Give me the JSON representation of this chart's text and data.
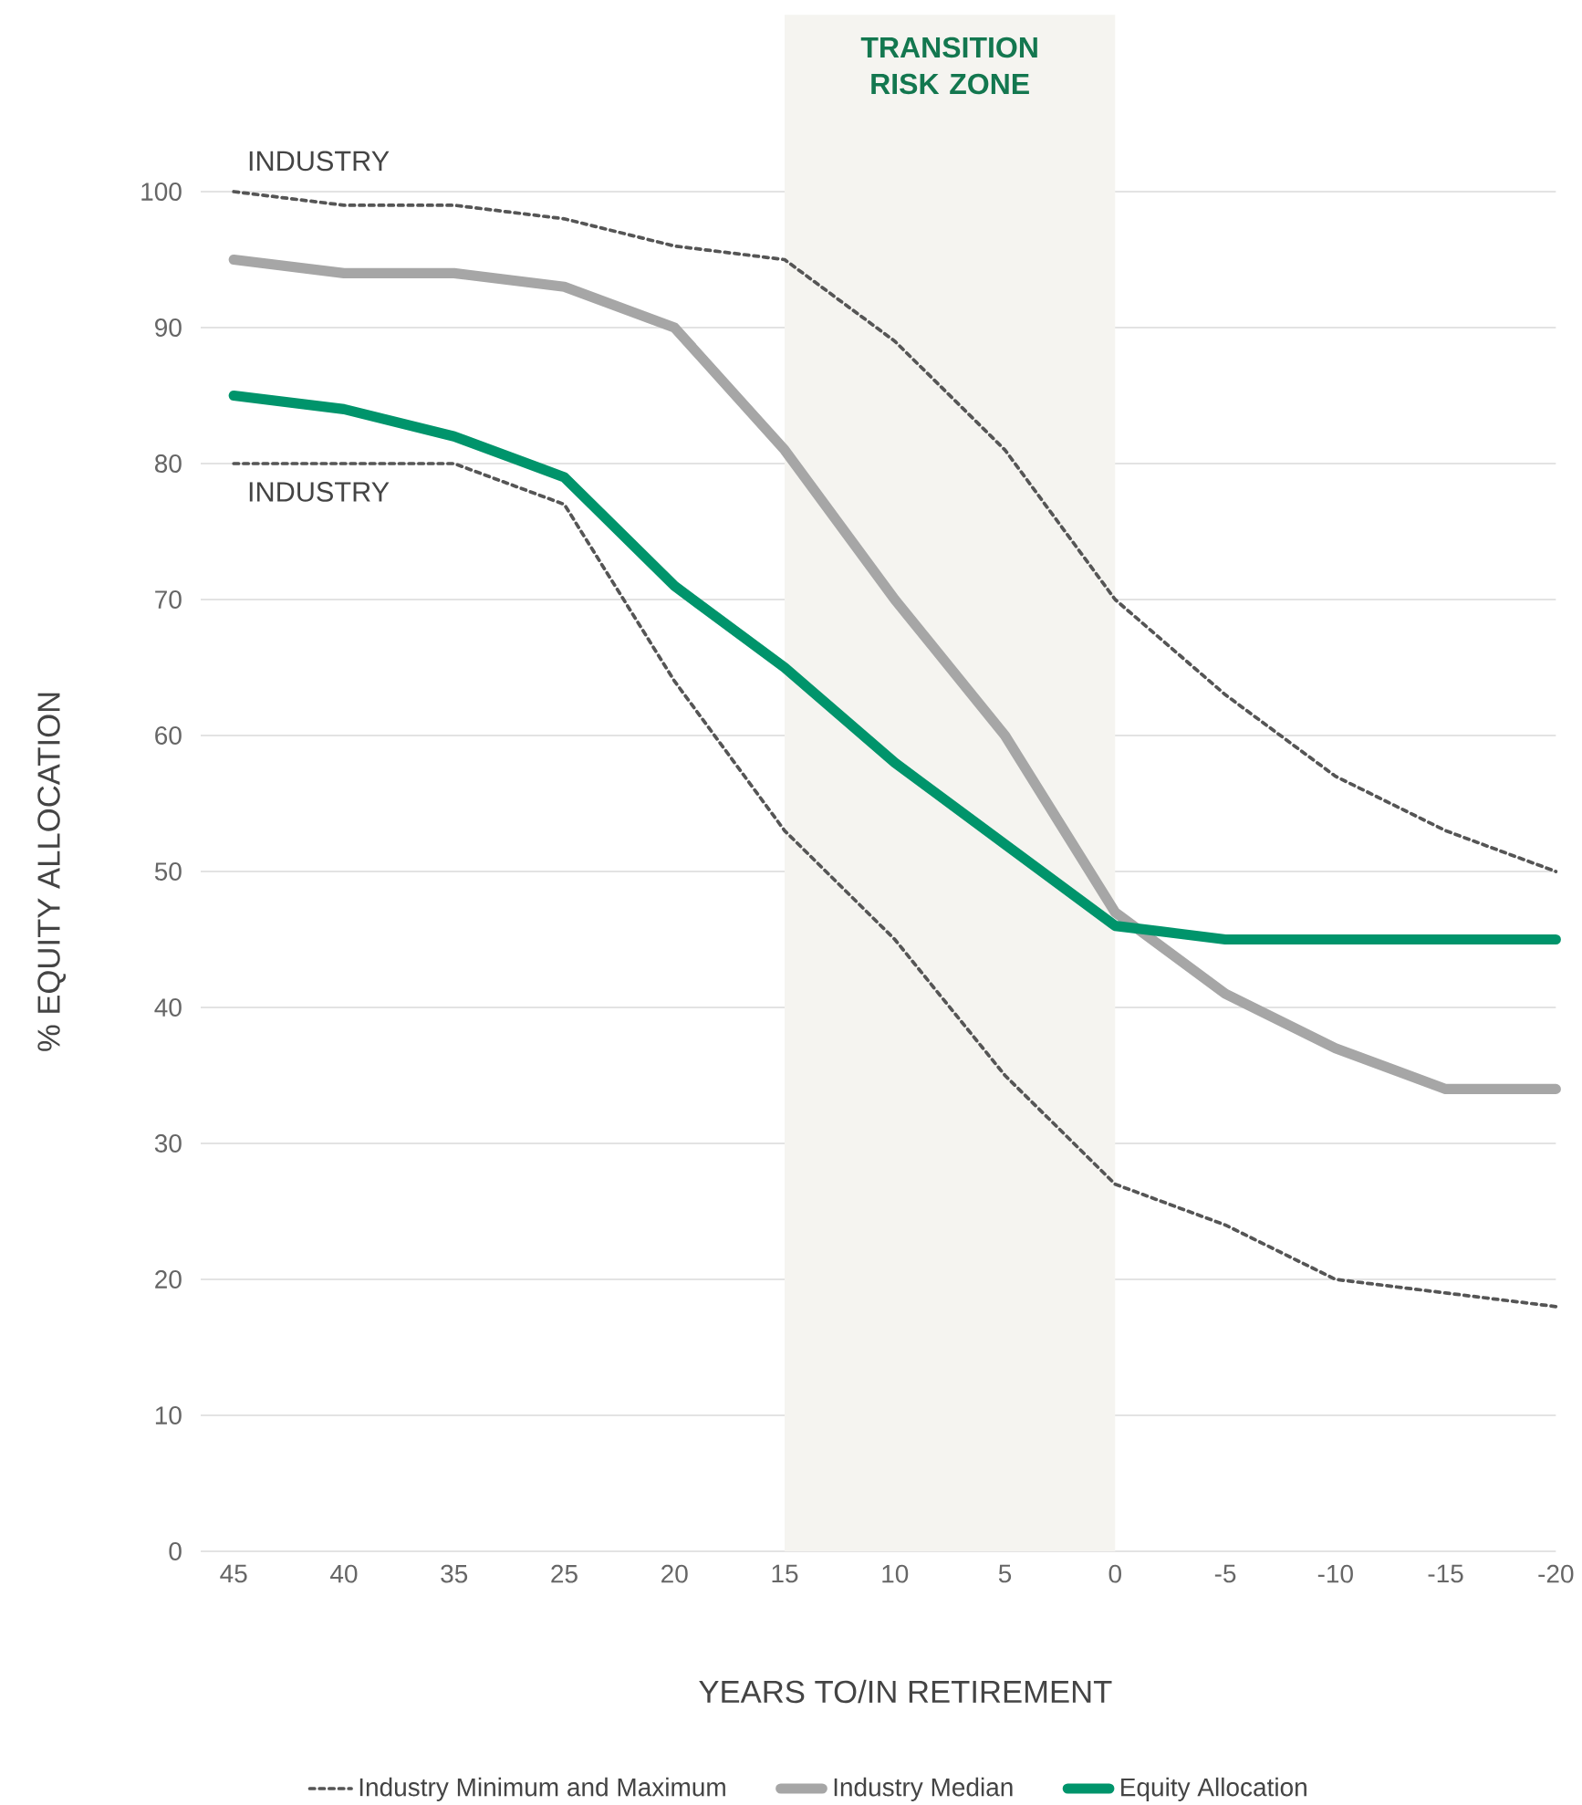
{
  "chart_data": {
    "type": "line",
    "xlabel": "YEARS TO/IN RETIREMENT",
    "ylabel": "% EQUITY ALLOCATION",
    "categories": [
      "45",
      "40",
      "35",
      "25",
      "20",
      "15",
      "10",
      "5",
      "0",
      "-5",
      "-10",
      "-15",
      "-20"
    ],
    "ylim": [
      0,
      100
    ],
    "yticks": [
      0,
      10,
      20,
      30,
      40,
      50,
      60,
      70,
      80,
      90,
      100
    ],
    "grid": "y",
    "legend": "bottom",
    "series": [
      {
        "name": "Industry Minimum and Maximum",
        "color": "#555555",
        "line_style": "dotted",
        "values": [
          100,
          99,
          99,
          98,
          96,
          95,
          89,
          81,
          70,
          63,
          57,
          53,
          50
        ]
      },
      {
        "color": "#555555",
        "line_style": "dotted",
        "values": [
          80,
          80,
          80,
          77,
          64,
          53,
          45,
          35,
          27,
          24,
          20,
          19,
          18
        ]
      },
      {
        "name": "Industry Median",
        "color": "#a6a6a6",
        "line_style": "solid",
        "values": [
          95,
          94,
          94,
          93,
          90,
          81,
          70,
          60,
          47,
          41,
          37,
          34,
          34
        ]
      },
      {
        "name": "Equity Allocation",
        "color": "#00946b",
        "line_style": "solid",
        "values": [
          85,
          84,
          82,
          79,
          71,
          65,
          58,
          52,
          46,
          45,
          45,
          45,
          45
        ]
      }
    ],
    "bands": [
      {
        "axis": "x",
        "from": "15",
        "to": "0",
        "label": "TRANSITION RISK ZONE",
        "color": "#f5f4f0"
      }
    ],
    "annotations": [
      {
        "text": "INDUSTRY",
        "x": "45",
        "y": 100
      },
      {
        "text": "INDUSTRY",
        "x": "45",
        "y": 80
      }
    ]
  }
}
